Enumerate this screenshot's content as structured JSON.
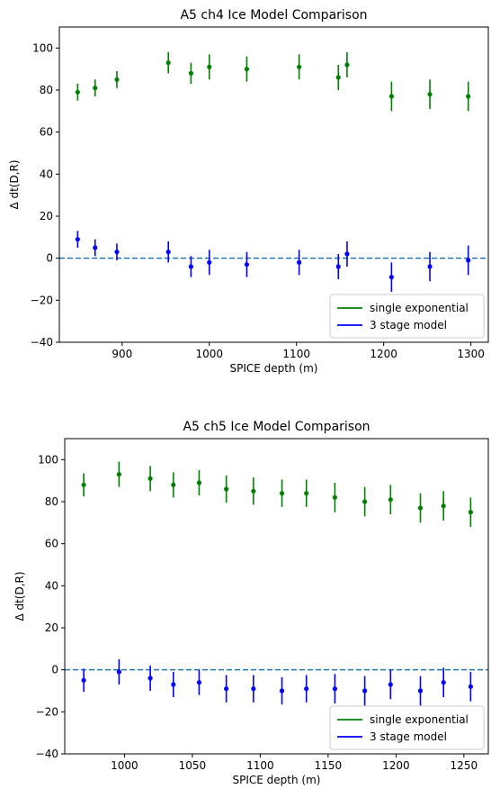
{
  "chart_data": [
    {
      "type": "scatter",
      "title": "A5 ch4 Ice Model Comparison",
      "xlabel": "SPICE depth (m)",
      "ylabel": "Δ dt(D,R)",
      "xlim": [
        828,
        1320
      ],
      "ylim": [
        -40,
        110
      ],
      "xticks": [
        900,
        1000,
        1100,
        1200,
        1300
      ],
      "yticks": [
        -40,
        -20,
        0,
        20,
        40,
        60,
        80,
        100
      ],
      "grid": false,
      "legend_position": "lower right",
      "reference_line": {
        "y": 0,
        "style": "dashed",
        "color": "#1f77b4"
      },
      "series": [
        {
          "name": "single exponential",
          "color": "#008000",
          "points": [
            {
              "x": 849,
              "y": 79,
              "err": 4
            },
            {
              "x": 869,
              "y": 81,
              "err": 4
            },
            {
              "x": 894,
              "y": 85,
              "err": 4
            },
            {
              "x": 953,
              "y": 93,
              "err": 5
            },
            {
              "x": 979,
              "y": 88,
              "err": 5
            },
            {
              "x": 1000,
              "y": 91,
              "err": 6
            },
            {
              "x": 1043,
              "y": 90,
              "err": 6
            },
            {
              "x": 1103,
              "y": 91,
              "err": 6
            },
            {
              "x": 1148,
              "y": 86,
              "err": 6
            },
            {
              "x": 1158,
              "y": 92,
              "err": 6
            },
            {
              "x": 1209,
              "y": 77,
              "err": 7
            },
            {
              "x": 1253,
              "y": 78,
              "err": 7
            },
            {
              "x": 1297,
              "y": 77,
              "err": 7
            }
          ]
        },
        {
          "name": "3 stage model",
          "color": "#0000ff",
          "points": [
            {
              "x": 849,
              "y": 9,
              "err": 4
            },
            {
              "x": 869,
              "y": 5,
              "err": 4
            },
            {
              "x": 894,
              "y": 3,
              "err": 4
            },
            {
              "x": 953,
              "y": 3,
              "err": 5
            },
            {
              "x": 979,
              "y": -4,
              "err": 5
            },
            {
              "x": 1000,
              "y": -2,
              "err": 6
            },
            {
              "x": 1043,
              "y": -3,
              "err": 6
            },
            {
              "x": 1103,
              "y": -2,
              "err": 6
            },
            {
              "x": 1148,
              "y": -4,
              "err": 6
            },
            {
              "x": 1158,
              "y": 2,
              "err": 6
            },
            {
              "x": 1209,
              "y": -9,
              "err": 7
            },
            {
              "x": 1253,
              "y": -4,
              "err": 7
            },
            {
              "x": 1297,
              "y": -1,
              "err": 7
            }
          ]
        }
      ]
    },
    {
      "type": "scatter",
      "title": "A5 ch5 Ice Model Comparison",
      "xlabel": "SPICE depth (m)",
      "ylabel": "Δ dt(D,R)",
      "xlim": [
        956,
        1268
      ],
      "ylim": [
        -40,
        110
      ],
      "xticks": [
        1000,
        1050,
        1100,
        1150,
        1200,
        1250
      ],
      "yticks": [
        -40,
        -20,
        0,
        20,
        40,
        60,
        80,
        100
      ],
      "grid": false,
      "legend_position": "lower right",
      "reference_line": {
        "y": 0,
        "style": "dashed",
        "color": "#1f77b4"
      },
      "series": [
        {
          "name": "single exponential",
          "color": "#008000",
          "points": [
            {
              "x": 970,
              "y": 88,
              "err": 5.5
            },
            {
              "x": 996,
              "y": 93,
              "err": 6
            },
            {
              "x": 1019,
              "y": 91,
              "err": 6
            },
            {
              "x": 1036,
              "y": 88,
              "err": 6
            },
            {
              "x": 1055,
              "y": 89,
              "err": 6
            },
            {
              "x": 1075,
              "y": 86,
              "err": 6.5
            },
            {
              "x": 1095,
              "y": 85,
              "err": 6.5
            },
            {
              "x": 1116,
              "y": 84,
              "err": 6.5
            },
            {
              "x": 1134,
              "y": 84,
              "err": 6.5
            },
            {
              "x": 1155,
              "y": 82,
              "err": 7
            },
            {
              "x": 1177,
              "y": 80,
              "err": 7
            },
            {
              "x": 1196,
              "y": 81,
              "err": 7
            },
            {
              "x": 1218,
              "y": 77,
              "err": 7
            },
            {
              "x": 1235,
              "y": 78,
              "err": 7
            },
            {
              "x": 1255,
              "y": 75,
              "err": 7
            }
          ]
        },
        {
          "name": "3 stage model",
          "color": "#0000ff",
          "points": [
            {
              "x": 970,
              "y": -5,
              "err": 5.5
            },
            {
              "x": 996,
              "y": -1,
              "err": 6
            },
            {
              "x": 1019,
              "y": -4,
              "err": 6
            },
            {
              "x": 1036,
              "y": -7,
              "err": 6
            },
            {
              "x": 1055,
              "y": -6,
              "err": 6
            },
            {
              "x": 1075,
              "y": -9,
              "err": 6.5
            },
            {
              "x": 1095,
              "y": -9,
              "err": 6.5
            },
            {
              "x": 1116,
              "y": -10,
              "err": 6.5
            },
            {
              "x": 1134,
              "y": -9,
              "err": 6.5
            },
            {
              "x": 1155,
              "y": -9,
              "err": 7
            },
            {
              "x": 1177,
              "y": -10,
              "err": 7
            },
            {
              "x": 1196,
              "y": -7,
              "err": 7
            },
            {
              "x": 1218,
              "y": -10,
              "err": 7
            },
            {
              "x": 1235,
              "y": -6,
              "err": 7
            },
            {
              "x": 1255,
              "y": -8,
              "err": 7
            }
          ]
        }
      ]
    }
  ]
}
